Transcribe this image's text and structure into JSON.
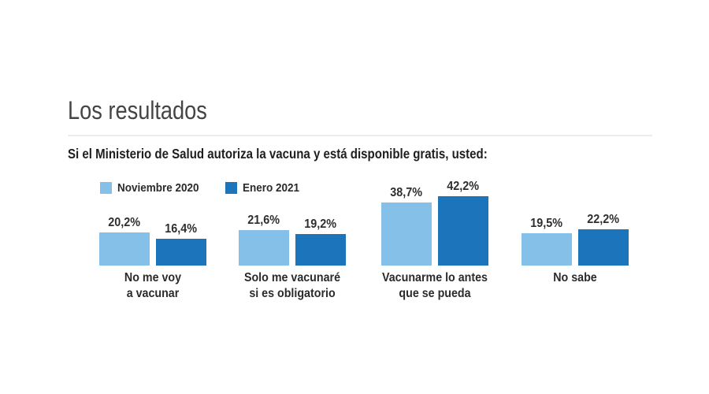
{
  "chart_data": {
    "type": "bar",
    "title": "Los resultados",
    "question": "Si el Ministerio de Salud autoriza la vacuna y está disponible gratis, usted:",
    "categories": [
      "No me voy\na vacunar",
      "Solo me vacunaré\nsi es obligatorio",
      "Vacunarme lo antes\nque se pueda",
      "No sabe"
    ],
    "series": [
      {
        "name": "Noviembre 2020",
        "color": "#84C0E7",
        "values": [
          20.2,
          21.6,
          38.7,
          19.5
        ],
        "display_values": [
          "20,2%",
          "21,6%",
          "38,7%",
          "19,5%"
        ]
      },
      {
        "name": "Enero 2021",
        "color": "#1C75BB",
        "values": [
          16.4,
          19.2,
          42.2,
          22.2
        ],
        "display_values": [
          "16,4%",
          "19,2%",
          "42,2%",
          "22,2%"
        ]
      }
    ],
    "ylim": [
      0,
      50
    ],
    "grid": false,
    "axes_hidden": true,
    "legend_position": "top-left",
    "value_label_position": "above-bar"
  }
}
